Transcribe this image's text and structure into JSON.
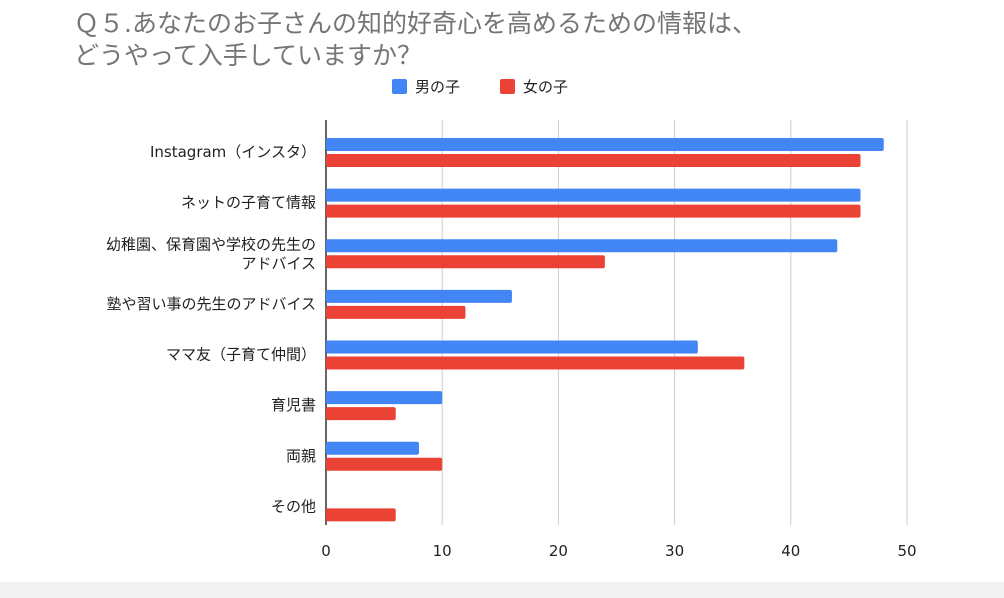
{
  "chart_data": {
    "type": "bar",
    "orientation": "horizontal",
    "title_lines": [
      "Ｑ５.あなたのお子さんの知的好奇心を高めるための情報は、",
      "どうやって入手していますか？"
    ],
    "categories": [
      [
        "Instagram（インスタ）"
      ],
      [
        "ネットの子育て情報"
      ],
      [
        "幼稚園、保育園や学校の先生の",
        "アドバイス"
      ],
      [
        "塾や習い事の先生のアドバイス"
      ],
      [
        "ママ友（子育て仲間）"
      ],
      [
        "育児書"
      ],
      [
        "両親"
      ],
      [
        "その他"
      ]
    ],
    "series": [
      {
        "name": "男の子",
        "color": "#4285f4",
        "values": [
          48,
          46,
          44,
          16,
          32,
          10,
          8,
          0
        ]
      },
      {
        "name": "女の子",
        "color": "#ea4335",
        "values": [
          46,
          46,
          24,
          12,
          36,
          6,
          10,
          6
        ]
      }
    ],
    "xlim": [
      0,
      50
    ],
    "xticks": [
      "0",
      "10",
      "20",
      "30",
      "40",
      "50"
    ],
    "grid": true,
    "legend_position": "top-center"
  }
}
